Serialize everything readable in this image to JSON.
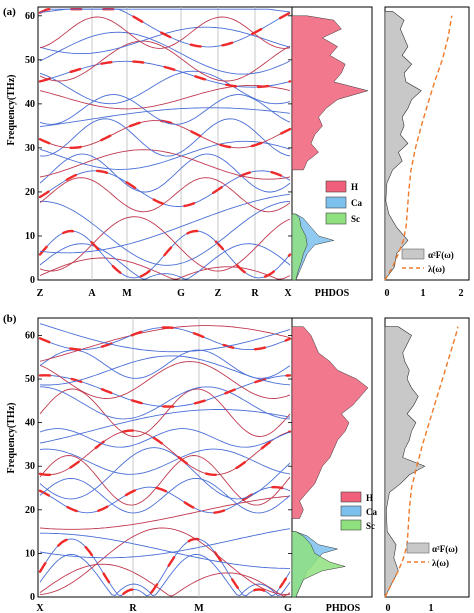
{
  "figure": {
    "panels": [
      {
        "panel_label": "(a)",
        "ylabel": "Frequency(THz)",
        "hsym_labels": [
          "Z",
          "A",
          "M",
          "G",
          "Z",
          "R",
          "X"
        ],
        "phdos_label": "PHDOS",
        "legend_phdos": [
          "H",
          "Ca",
          "Sc"
        ],
        "legend_eliash": [
          "α²F(ω)",
          "λ(ω)"
        ],
        "eliash_xticks": [
          "0",
          "1",
          "2"
        ]
      },
      {
        "panel_label": "(b)",
        "ylabel": "Frequency(THz)",
        "hsym_labels": [
          "X",
          "R",
          "M",
          "G"
        ],
        "phdos_label": "PHDOS",
        "legend_phdos": [
          "H",
          "Ca",
          "Sc"
        ],
        "legend_eliash": [
          "α²F(ω)",
          "λ(ω)"
        ],
        "eliash_xticks": [
          "0",
          "1"
        ]
      }
    ]
  },
  "colors": {
    "band_line": "#4a6fd6",
    "band_alt": "#c0394f",
    "fatband": "#ee2a2a",
    "H": "#f0607a",
    "Ca": "#7cc1ee",
    "Sc": "#8fe07f",
    "a2F": "#c8c8c8",
    "lambda": "#f07a2a"
  },
  "chart_data": [
    {
      "type": "line",
      "panel": "a",
      "title": "",
      "xlabel": "",
      "ylabel": "Frequency(THz)",
      "ylim": [
        0,
        62
      ],
      "yticks": [
        0,
        10,
        20,
        30,
        40,
        50,
        60
      ],
      "high_symmetry_points": [
        "Z",
        "A",
        "M",
        "G",
        "Z",
        "R",
        "X"
      ],
      "phdos": {
        "xlabel": "PHDOS",
        "series": [
          {
            "name": "H",
            "freq": [
              25,
              27,
              29,
              31,
              33,
              35,
              37,
              39,
              41,
              43,
              45,
              47,
              49,
              51,
              53,
              55,
              57,
              59,
              60
            ],
            "dos": [
              0.15,
              0.2,
              0.35,
              0.25,
              0.3,
              0.4,
              0.35,
              0.45,
              0.6,
              1.0,
              0.55,
              0.65,
              0.7,
              0.5,
              0.6,
              0.4,
              0.65,
              0.55,
              0.2
            ]
          },
          {
            "name": "Ca",
            "freq": [
              0,
              2,
              4,
              6,
              8,
              9,
              10,
              12,
              14,
              15
            ],
            "dos": [
              0.05,
              0.1,
              0.15,
              0.2,
              0.3,
              0.55,
              0.35,
              0.25,
              0.15,
              0.05
            ]
          },
          {
            "name": "Sc",
            "freq": [
              0,
              2,
              4,
              6,
              8,
              10,
              12,
              14,
              15
            ],
            "dos": [
              0.05,
              0.08,
              0.12,
              0.15,
              0.2,
              0.18,
              0.12,
              0.1,
              0.05
            ]
          }
        ]
      },
      "eliashberg": {
        "xticks": [
          0,
          1,
          2
        ],
        "xlim": [
          0,
          2.2
        ],
        "series": [
          {
            "name": "α²F(ω)",
            "freq": [
              0,
              3,
              6,
              9,
              12,
              15,
              18,
              22,
              25,
              27,
              29,
              31,
              33,
              35,
              37,
              39,
              41,
              43,
              45,
              47,
              49,
              51,
              53,
              55,
              57,
              59,
              61
            ],
            "value": [
              0.0,
              0.25,
              0.3,
              0.6,
              0.3,
              0.1,
              0.02,
              0.05,
              0.2,
              0.45,
              0.35,
              0.6,
              0.4,
              0.5,
              0.45,
              0.6,
              0.7,
              0.95,
              0.55,
              0.5,
              0.7,
              0.45,
              0.6,
              0.5,
              0.4,
              0.5,
              0.2
            ]
          },
          {
            "name": "λ(ω)",
            "freq": [
              0,
              3,
              6,
              9,
              12,
              15,
              20,
              25,
              30,
              35,
              40,
              45,
              50,
              55,
              60
            ],
            "value": [
              0.0,
              0.2,
              0.35,
              0.48,
              0.55,
              0.58,
              0.62,
              0.68,
              0.8,
              0.95,
              1.12,
              1.3,
              1.5,
              1.65,
              1.75
            ]
          }
        ]
      }
    },
    {
      "type": "line",
      "panel": "b",
      "title": "",
      "xlabel": "",
      "ylabel": "Frequency(THz)",
      "ylim": [
        0,
        64
      ],
      "yticks": [
        0,
        10,
        20,
        30,
        40,
        50,
        60
      ],
      "high_symmetry_points": [
        "X",
        "R",
        "M",
        "G"
      ],
      "phdos": {
        "xlabel": "PHDOS",
        "series": [
          {
            "name": "H",
            "freq": [
              18,
              20,
              22,
              24,
              26,
              28,
              30,
              32,
              34,
              36,
              38,
              40,
              42,
              44,
              46,
              48,
              50,
              52,
              54,
              56,
              58,
              60,
              62
            ],
            "dos": [
              0.1,
              0.15,
              0.1,
              0.2,
              0.3,
              0.35,
              0.4,
              0.5,
              0.55,
              0.6,
              0.7,
              0.75,
              0.65,
              0.8,
              0.9,
              1.0,
              0.85,
              0.6,
              0.5,
              0.35,
              0.3,
              0.25,
              0.15
            ]
          },
          {
            "name": "Ca",
            "freq": [
              0,
              2,
              4,
              6,
              8,
              10,
              11,
              12,
              14,
              15
            ],
            "dos": [
              0.05,
              0.1,
              0.15,
              0.2,
              0.3,
              0.4,
              0.6,
              0.35,
              0.2,
              0.05
            ]
          },
          {
            "name": "Sc",
            "freq": [
              0,
              2,
              4,
              6,
              7,
              8,
              10,
              12,
              14,
              15
            ],
            "dos": [
              0.05,
              0.1,
              0.15,
              0.4,
              0.7,
              0.5,
              0.3,
              0.25,
              0.15,
              0.05
            ]
          }
        ]
      },
      "eliashberg": {
        "xticks": [
          0,
          1
        ],
        "xlim": [
          0,
          1.9
        ],
        "series": [
          {
            "name": "α²F(ω)",
            "freq": [
              0,
              3,
              6,
              9,
              12,
              15,
              20,
              24,
              26,
              28,
              30,
              32,
              34,
              36,
              38,
              40,
              42,
              44,
              46,
              48,
              50,
              52,
              54,
              56,
              58,
              60,
              62
            ],
            "value": [
              0.0,
              0.15,
              0.3,
              0.2,
              0.25,
              0.05,
              0.03,
              0.1,
              0.35,
              0.55,
              0.9,
              0.4,
              0.45,
              0.55,
              0.6,
              0.7,
              0.5,
              0.65,
              0.75,
              0.6,
              0.5,
              0.55,
              0.45,
              0.4,
              0.5,
              0.6,
              0.3
            ]
          },
          {
            "name": "λ(ω)",
            "freq": [
              0,
              3,
              6,
              9,
              12,
              15,
              20,
              25,
              30,
              35,
              40,
              45,
              50,
              55,
              60,
              62
            ],
            "value": [
              0.0,
              0.15,
              0.3,
              0.42,
              0.5,
              0.52,
              0.55,
              0.6,
              0.72,
              0.85,
              1.0,
              1.15,
              1.3,
              1.45,
              1.6,
              1.65
            ]
          }
        ]
      }
    }
  ]
}
